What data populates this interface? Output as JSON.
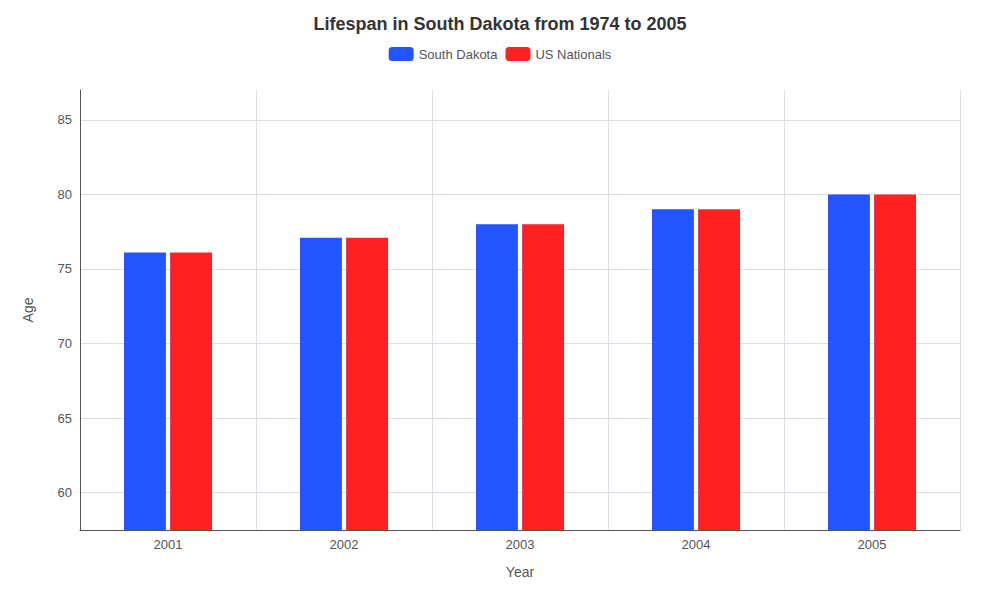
{
  "chart_data": {
    "type": "bar",
    "title": "Lifespan in South Dakota from 1974 to 2005",
    "xlabel": "Year",
    "ylabel": "Age",
    "categories": [
      "2001",
      "2002",
      "2003",
      "2004",
      "2005"
    ],
    "series": [
      {
        "name": "South Dakota",
        "color": "#2255ff",
        "values": [
          76.1,
          77.1,
          78.0,
          79.0,
          80.0
        ]
      },
      {
        "name": "US Nationals",
        "color": "#ff2222",
        "values": [
          76.1,
          77.1,
          78.0,
          79.0,
          80.0
        ]
      }
    ],
    "ylim": [
      57.5,
      87
    ],
    "yticks": [
      60,
      65,
      70,
      75,
      80,
      85
    ],
    "grid": true,
    "legend": "top"
  }
}
